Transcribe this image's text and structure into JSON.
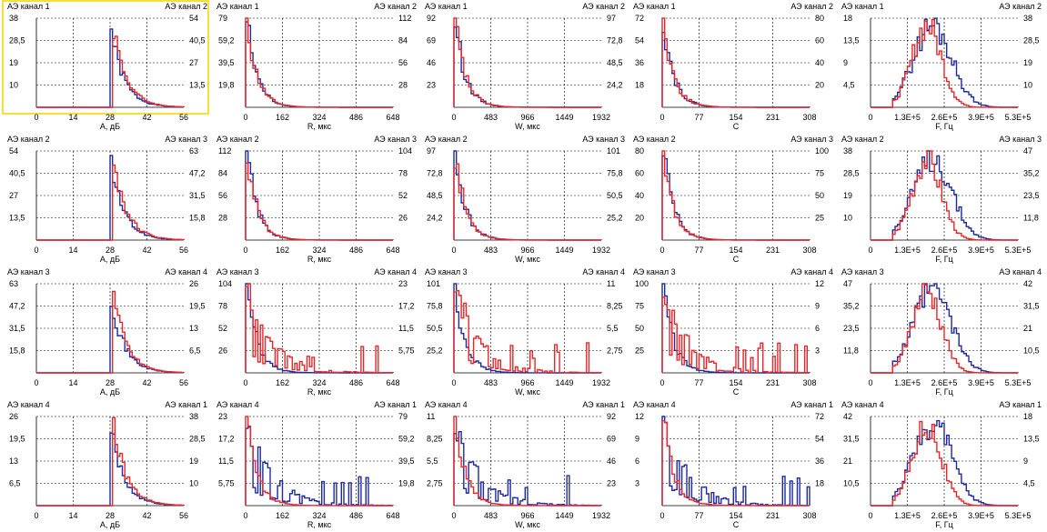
{
  "colors": {
    "ch_left": "#1f2aa0",
    "ch_right": "#e8272a",
    "grid": "#000000",
    "selection": "#f5e03a"
  },
  "chart_data": [
    {
      "row": 0,
      "col": 0,
      "type": "line",
      "ch_left": "АЭ канал 1",
      "ch_right": "АЭ канал 2",
      "xlabel": "А, дБ",
      "xticks": [
        "0",
        "14",
        "28",
        "42",
        "56"
      ],
      "yleft": [
        "38",
        "28,5",
        "19",
        "10"
      ],
      "yright": [
        "54",
        "40,5",
        "27",
        "13,5"
      ],
      "xlim": [
        0,
        56
      ],
      "ylim_left": [
        0,
        38
      ],
      "ylim_right": [
        0,
        54
      ],
      "selected": true
    },
    {
      "row": 0,
      "col": 1,
      "type": "line",
      "ch_left": "АЭ канал 1",
      "ch_right": "АЭ канал 2",
      "xlabel": "R, мкс",
      "xticks": [
        "0",
        "162",
        "324",
        "486",
        "648"
      ],
      "yleft": [
        "79",
        "59,2",
        "39,5",
        "19,8"
      ],
      "yright": [
        "112",
        "84",
        "56",
        "28"
      ],
      "xlim": [
        0,
        648
      ],
      "ylim_left": [
        0,
        79
      ],
      "ylim_right": [
        0,
        112
      ]
    },
    {
      "row": 0,
      "col": 2,
      "type": "line",
      "ch_left": "АЭ канал 1",
      "ch_right": "АЭ канал 2",
      "xlabel": "W, мкс",
      "xticks": [
        "0",
        "483",
        "966",
        "1449",
        "1932"
      ],
      "yleft": [
        "92",
        "69",
        "46",
        "23"
      ],
      "yright": [
        "97",
        "72,8",
        "48,5",
        "24,2"
      ],
      "xlim": [
        0,
        1932
      ],
      "ylim_left": [
        0,
        92
      ],
      "ylim_right": [
        0,
        97
      ]
    },
    {
      "row": 0,
      "col": 3,
      "type": "line",
      "ch_left": "АЭ канал 1",
      "ch_right": "АЭ канал 2",
      "xlabel": "C",
      "xticks": [
        "0",
        "77",
        "154",
        "231",
        "308"
      ],
      "yleft": [
        "72",
        "54",
        "36",
        "18"
      ],
      "yright": [
        "80",
        "60",
        "40",
        "20"
      ],
      "xlim": [
        0,
        308
      ],
      "ylim_left": [
        0,
        72
      ],
      "ylim_right": [
        0,
        80
      ]
    },
    {
      "row": 0,
      "col": 4,
      "type": "line",
      "ch_left": "АЭ канал 1",
      "ch_right": "АЭ канал 2",
      "xlabel": "F, Гц",
      "xticks": [
        "0",
        "1.3E+5",
        "2.6E+5",
        "3.9E+5",
        "5.3E+5"
      ],
      "yleft": [
        "18",
        "13,5",
        "9",
        "4,5"
      ],
      "yright": [
        "38",
        "28,5",
        "19",
        "10"
      ],
      "xlim": [
        0,
        530000
      ],
      "ylim_left": [
        0,
        18
      ],
      "ylim_right": [
        0,
        38
      ]
    },
    {
      "row": 1,
      "col": 0,
      "type": "line",
      "ch_left": "АЭ канал 2",
      "ch_right": "АЭ канал 3",
      "xlabel": "А, дБ",
      "xticks": [
        "0",
        "14",
        "28",
        "42",
        "56"
      ],
      "yleft": [
        "54",
        "40,5",
        "27",
        "13,5"
      ],
      "yright": [
        "63",
        "47,2",
        "31,5",
        "15,8"
      ],
      "xlim": [
        0,
        56
      ],
      "ylim_left": [
        0,
        54
      ],
      "ylim_right": [
        0,
        63
      ]
    },
    {
      "row": 1,
      "col": 1,
      "type": "line",
      "ch_left": "АЭ канал 2",
      "ch_right": "АЭ канал 3",
      "xlabel": "R, мкс",
      "xticks": [
        "0",
        "162",
        "324",
        "486",
        "648"
      ],
      "yleft": [
        "112",
        "84",
        "56",
        "28"
      ],
      "yright": [
        "104",
        "78",
        "52",
        "26"
      ],
      "xlim": [
        0,
        648
      ],
      "ylim_left": [
        0,
        112
      ],
      "ylim_right": [
        0,
        104
      ]
    },
    {
      "row": 1,
      "col": 2,
      "type": "line",
      "ch_left": "АЭ канал 2",
      "ch_right": "АЭ канал 3",
      "xlabel": "W, мкс",
      "xticks": [
        "0",
        "483",
        "966",
        "1449",
        "1932"
      ],
      "yleft": [
        "97",
        "72,8",
        "48,5",
        "24,2"
      ],
      "yright": [
        "101",
        "75,8",
        "50,5",
        "25,2"
      ],
      "xlim": [
        0,
        1932
      ],
      "ylim_left": [
        0,
        97
      ],
      "ylim_right": [
        0,
        101
      ]
    },
    {
      "row": 1,
      "col": 3,
      "type": "line",
      "ch_left": "АЭ канал 2",
      "ch_right": "АЭ канал 3",
      "xlabel": "C",
      "xticks": [
        "0",
        "77",
        "154",
        "231",
        "308"
      ],
      "yleft": [
        "80",
        "60",
        "40",
        "20"
      ],
      "yright": [
        "100",
        "75",
        "50",
        "25"
      ],
      "xlim": [
        0,
        308
      ],
      "ylim_left": [
        0,
        80
      ],
      "ylim_right": [
        0,
        100
      ]
    },
    {
      "row": 1,
      "col": 4,
      "type": "line",
      "ch_left": "АЭ канал 2",
      "ch_right": "АЭ канал 3",
      "xlabel": "F, Гц",
      "xticks": [
        "0",
        "1.3E+5",
        "2.6E+5",
        "3.9E+5",
        "5.3E+5"
      ],
      "yleft": [
        "38",
        "28,5",
        "19",
        "10"
      ],
      "yright": [
        "47",
        "35,2",
        "23,5",
        "11,8"
      ],
      "xlim": [
        0,
        530000
      ],
      "ylim_left": [
        0,
        38
      ],
      "ylim_right": [
        0,
        47
      ]
    },
    {
      "row": 2,
      "col": 0,
      "type": "line",
      "ch_left": "АЭ канал 3",
      "ch_right": "АЭ канал 4",
      "xlabel": "А, дБ",
      "xticks": [
        "0",
        "14",
        "28",
        "42",
        "56"
      ],
      "yleft": [
        "63",
        "47,2",
        "31,5",
        "15,8"
      ],
      "yright": [
        "26",
        "19,5",
        "13",
        "6,5"
      ],
      "xlim": [
        0,
        56
      ],
      "ylim_left": [
        0,
        63
      ],
      "ylim_right": [
        0,
        26
      ]
    },
    {
      "row": 2,
      "col": 1,
      "type": "line",
      "ch_left": "АЭ канал 3",
      "ch_right": "АЭ канал 4",
      "xlabel": "R, мкс",
      "xticks": [
        "0",
        "162",
        "324",
        "486",
        "648"
      ],
      "yleft": [
        "104",
        "78",
        "52",
        "26"
      ],
      "yright": [
        "23",
        "17,2",
        "11,5",
        "5,75"
      ],
      "xlim": [
        0,
        648
      ],
      "ylim_left": [
        0,
        104
      ],
      "ylim_right": [
        0,
        23
      ]
    },
    {
      "row": 2,
      "col": 2,
      "type": "line",
      "ch_left": "АЭ канал 3",
      "ch_right": "АЭ канал 4",
      "xlabel": "W, мкс",
      "xticks": [
        "0",
        "483",
        "966",
        "1449",
        "1932"
      ],
      "yleft": [
        "101",
        "75,8",
        "50,5",
        "25,2"
      ],
      "yright": [
        "11",
        "8,25",
        "5,5",
        "2,75"
      ],
      "xlim": [
        0,
        1932
      ],
      "ylim_left": [
        0,
        101
      ],
      "ylim_right": [
        0,
        11
      ]
    },
    {
      "row": 2,
      "col": 3,
      "type": "line",
      "ch_left": "АЭ канал 3",
      "ch_right": "АЭ канал 4",
      "xlabel": "C",
      "xticks": [
        "0",
        "77",
        "154",
        "231",
        "308"
      ],
      "yleft": [
        "100",
        "75",
        "50",
        "25"
      ],
      "yright": [
        "12",
        "9",
        "6",
        "3"
      ],
      "xlim": [
        0,
        308
      ],
      "ylim_left": [
        0,
        100
      ],
      "ylim_right": [
        0,
        12
      ]
    },
    {
      "row": 2,
      "col": 4,
      "type": "line",
      "ch_left": "АЭ канал 3",
      "ch_right": "АЭ канал 4",
      "xlabel": "F, Гц",
      "xticks": [
        "0",
        "1.3E+5",
        "2.6E+5",
        "3.9E+5",
        "5.3E+5"
      ],
      "yleft": [
        "47",
        "35,2",
        "23,5",
        "11,8"
      ],
      "yright": [
        "42",
        "31,5",
        "21",
        "10,5"
      ],
      "xlim": [
        0,
        530000
      ],
      "ylim_left": [
        0,
        47
      ],
      "ylim_right": [
        0,
        42
      ]
    },
    {
      "row": 3,
      "col": 0,
      "type": "line",
      "ch_left": "АЭ канал 4",
      "ch_right": "АЭ канал 1",
      "xlabel": "А, дБ",
      "xticks": [
        "0",
        "14",
        "28",
        "42",
        "56"
      ],
      "yleft": [
        "26",
        "19,5",
        "13",
        "6,5"
      ],
      "yright": [
        "38",
        "28,5",
        "19",
        "10"
      ],
      "xlim": [
        0,
        56
      ],
      "ylim_left": [
        0,
        26
      ],
      "ylim_right": [
        0,
        38
      ]
    },
    {
      "row": 3,
      "col": 1,
      "type": "line",
      "ch_left": "АЭ канал 4",
      "ch_right": "АЭ канал 1",
      "xlabel": "R, мкс",
      "xticks": [
        "0",
        "162",
        "324",
        "486",
        "648"
      ],
      "yleft": [
        "23",
        "17,2",
        "11,5",
        "5,75"
      ],
      "yright": [
        "79",
        "59,2",
        "39,5",
        "19,8"
      ],
      "xlim": [
        0,
        648
      ],
      "ylim_left": [
        0,
        23
      ],
      "ylim_right": [
        0,
        79
      ]
    },
    {
      "row": 3,
      "col": 2,
      "type": "line",
      "ch_left": "АЭ канал 4",
      "ch_right": "АЭ канал 1",
      "xlabel": "W, мкс",
      "xticks": [
        "0",
        "483",
        "966",
        "1449",
        "1932"
      ],
      "yleft": [
        "11",
        "8,25",
        "5,5",
        "2,75"
      ],
      "yright": [
        "92",
        "69",
        "46",
        "23"
      ],
      "xlim": [
        0,
        1932
      ],
      "ylim_left": [
        0,
        11
      ],
      "ylim_right": [
        0,
        92
      ]
    },
    {
      "row": 3,
      "col": 3,
      "type": "line",
      "ch_left": "АЭ канал 4",
      "ch_right": "АЭ канал 1",
      "xlabel": "C",
      "xticks": [
        "0",
        "77",
        "154",
        "231",
        "308"
      ],
      "yleft": [
        "12",
        "9",
        "6",
        "3"
      ],
      "yright": [
        "72",
        "54",
        "36",
        "18"
      ],
      "xlim": [
        0,
        308
      ],
      "ylim_left": [
        0,
        12
      ],
      "ylim_right": [
        0,
        72
      ]
    },
    {
      "row": 3,
      "col": 4,
      "type": "line",
      "ch_left": "АЭ канал 4",
      "ch_right": "АЭ канал 1",
      "xlabel": "F, Гц",
      "xticks": [
        "0",
        "1.3E+5",
        "2.6E+5",
        "3.9E+5",
        "5.3E+5"
      ],
      "yleft": [
        "42",
        "31,5",
        "21",
        "10,5"
      ],
      "yright": [
        "18",
        "13,5",
        "9",
        "4,5"
      ],
      "xlim": [
        0,
        530000
      ],
      "ylim_left": [
        0,
        42
      ],
      "ylim_right": [
        0,
        18
      ]
    }
  ]
}
